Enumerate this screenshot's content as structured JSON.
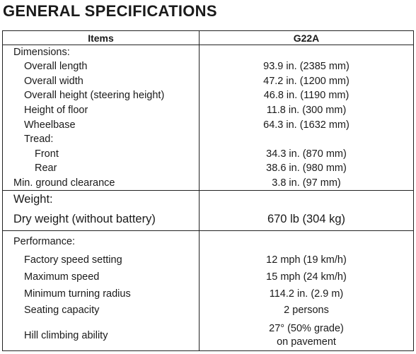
{
  "title": "GENERAL SPECIFICATIONS",
  "table": {
    "headers": {
      "items": "Items",
      "model": "G22A"
    },
    "sections": [
      {
        "rows": [
          {
            "label": "Dimensions:",
            "value": ""
          },
          {
            "label": "Overall length",
            "value": "93.9 in. (2385 mm)"
          },
          {
            "label": "Overall width",
            "value": "47.2 in. (1200 mm)"
          },
          {
            "label": "Overall height (steering height)",
            "value": "46.8 in. (1190 mm)"
          },
          {
            "label": "Height of floor",
            "value": "11.8 in. (300 mm)"
          },
          {
            "label": "Wheelbase",
            "value": "64.3 in. (1632 mm)"
          },
          {
            "label": "Tread:",
            "value": ""
          },
          {
            "label": "Front",
            "value": "34.3 in. (870 mm)"
          },
          {
            "label": "Rear",
            "value": "38.6 in. (980 mm)"
          },
          {
            "label": "Min. ground clearance",
            "value": "3.8 in. (97 mm)"
          }
        ]
      },
      {
        "rows": [
          {
            "label": "Weight:",
            "value": ""
          },
          {
            "label": "Dry weight (without battery)",
            "value": "670 lb (304 kg)"
          }
        ]
      },
      {
        "rows": [
          {
            "label": "Performance:",
            "value": ""
          },
          {
            "label": "Factory speed setting",
            "value": "12 mph (19 km/h)"
          },
          {
            "label": "Maximum speed",
            "value": "15 mph (24 km/h)"
          },
          {
            "label": "Minimum turning radius",
            "value": "114.2 in. (2.9 m)"
          },
          {
            "label": "Seating capacity",
            "value": "2 persons"
          },
          {
            "label": "Hill climbing ability",
            "value": "27° (50% grade)",
            "value_line2": "on pavement"
          }
        ]
      }
    ]
  }
}
